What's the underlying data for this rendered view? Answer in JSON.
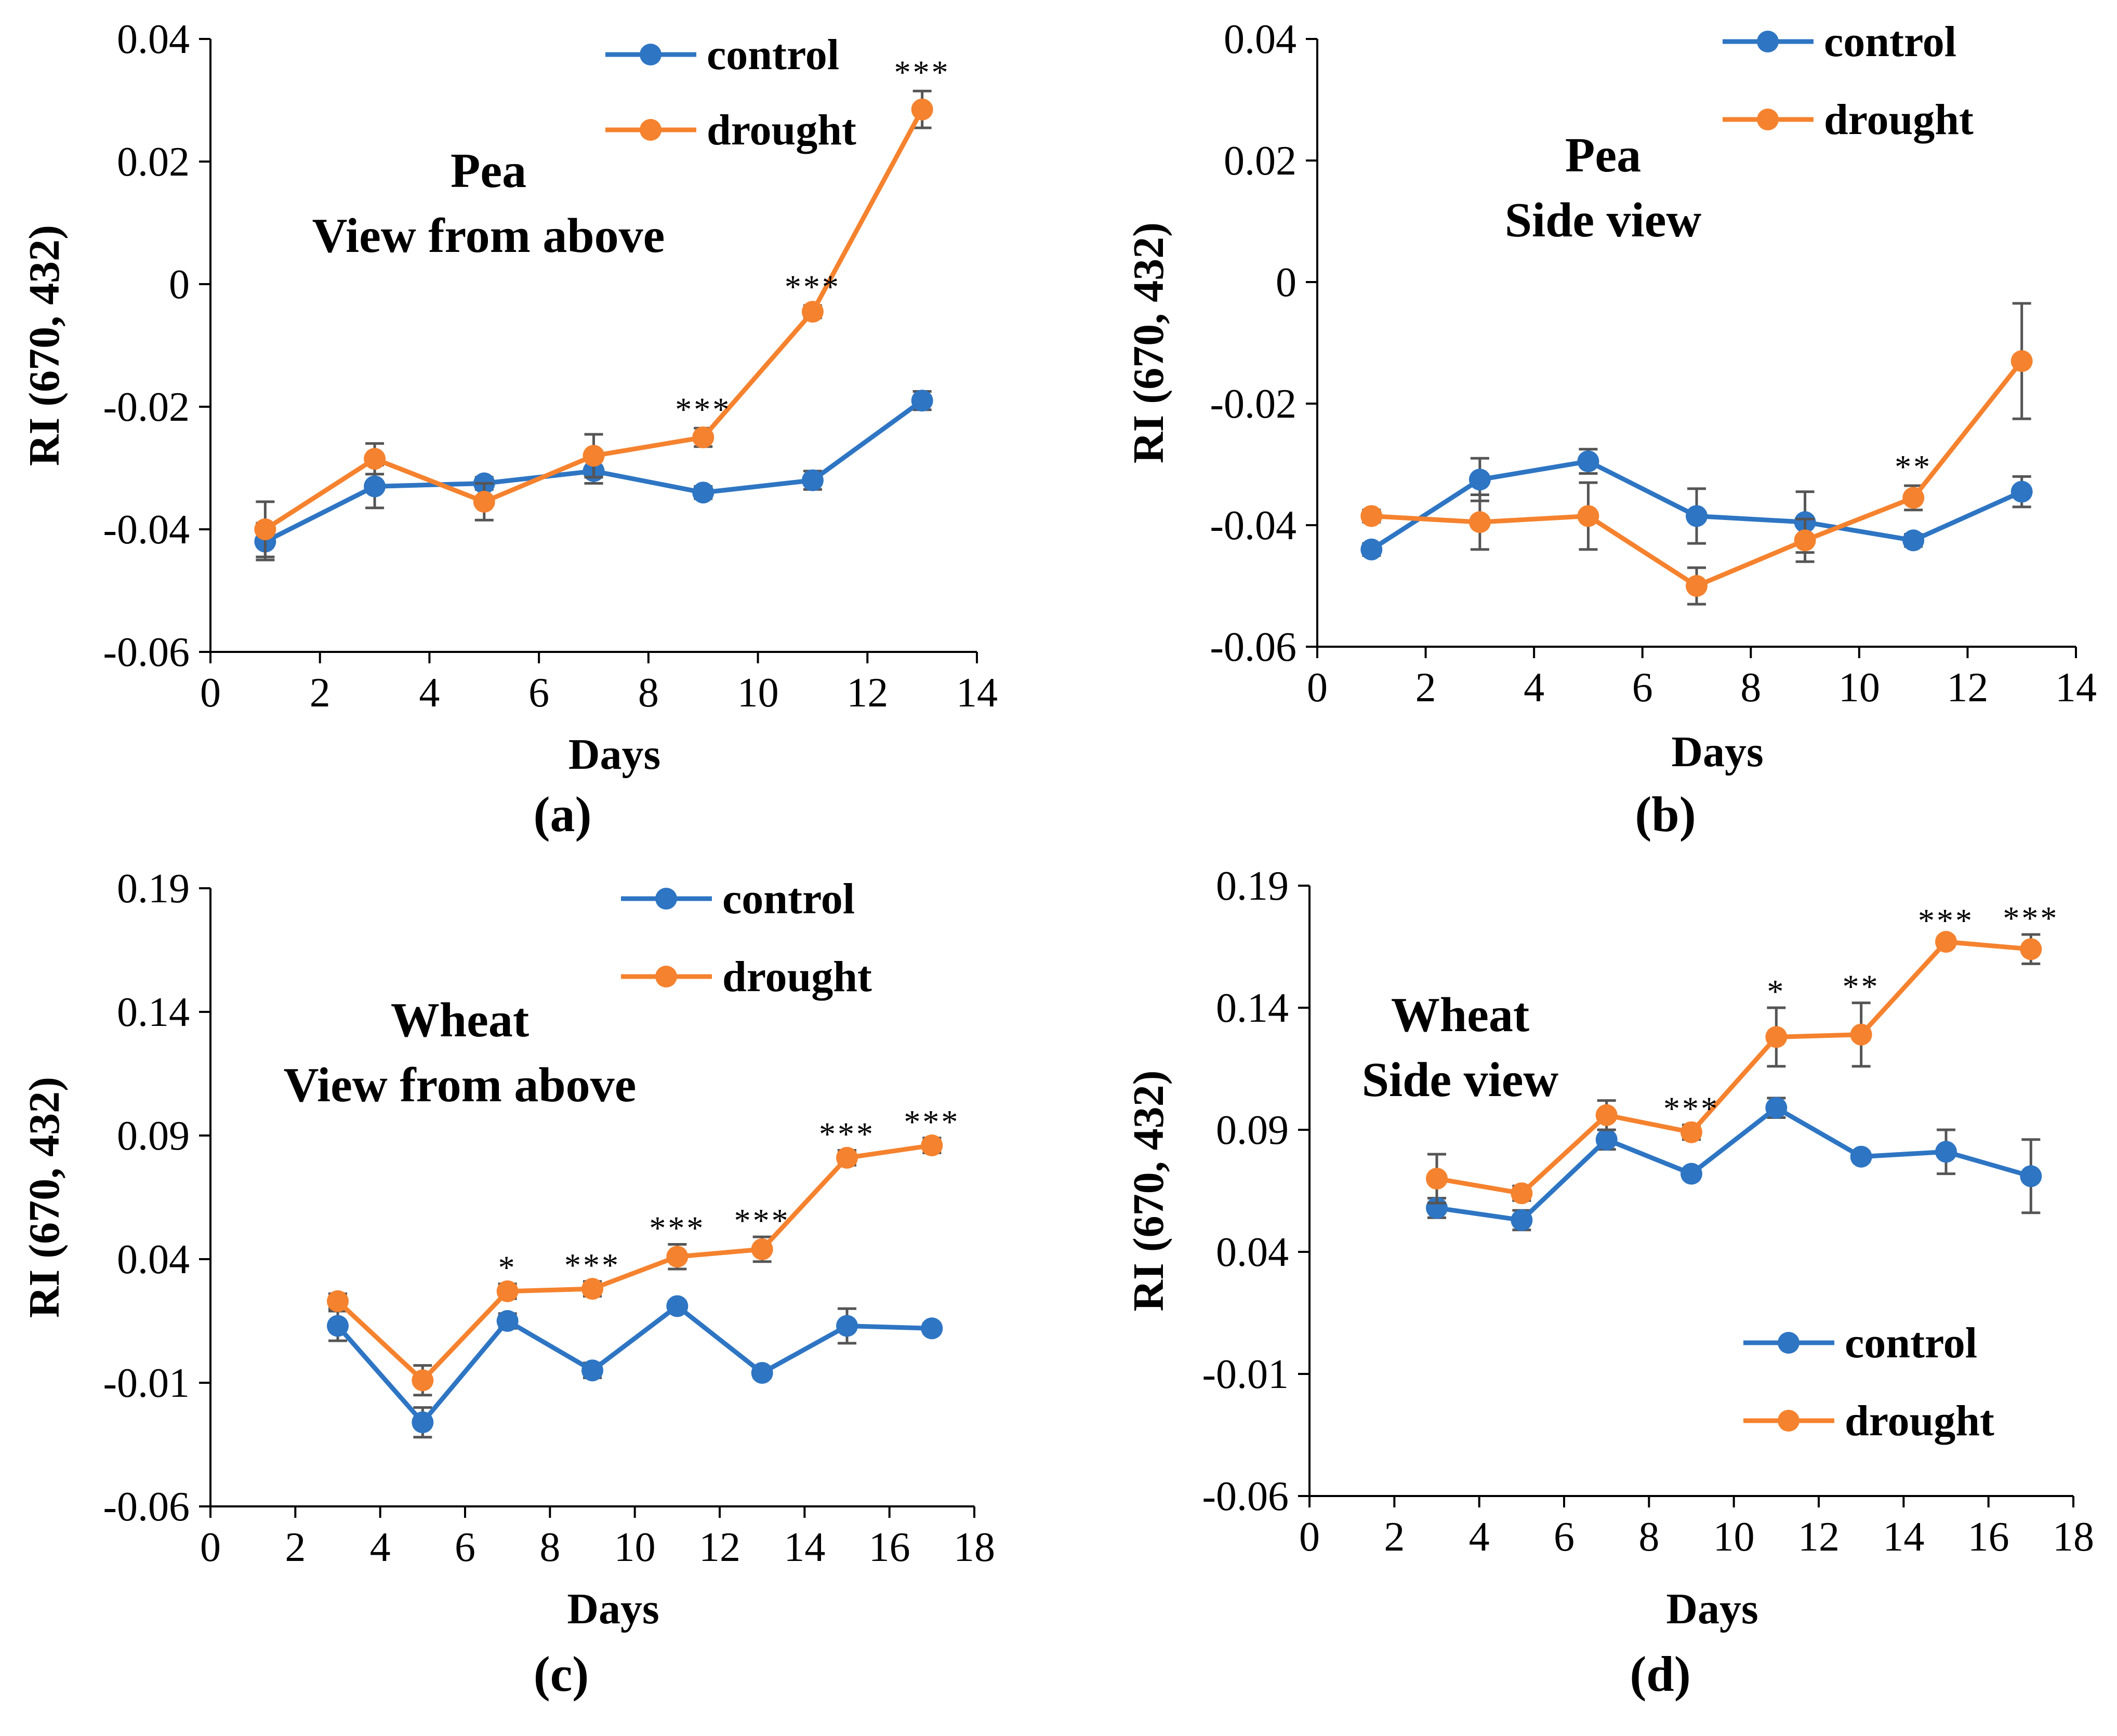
{
  "colors": {
    "control": "#2E75C3",
    "drought": "#F5822E",
    "axis": "#000000",
    "error": "#555555"
  },
  "chart_data": [
    {
      "type": "line",
      "panel": "(a)",
      "title": [
        "Pea",
        "View from above"
      ],
      "xlabel": "Days",
      "ylabel": "RI (670, 432)",
      "xlim": [
        0,
        14
      ],
      "ylim": [
        -0.06,
        0.04
      ],
      "xticks": [
        0,
        2,
        4,
        6,
        8,
        10,
        12,
        14
      ],
      "yticks": [
        -0.06,
        -0.04,
        -0.02,
        0,
        0.02,
        0.04
      ],
      "ytick_labels": [
        "-0.06",
        "-0.04",
        "-0.02",
        "0",
        "0.02",
        "0.04"
      ],
      "legend_position": "top-right",
      "x": [
        1,
        3,
        5,
        7,
        9,
        11,
        13
      ],
      "series": [
        {
          "name": "control",
          "values": [
            -0.042,
            -0.033,
            -0.0325,
            -0.0305,
            -0.034,
            -0.032,
            -0.019
          ],
          "errors": [
            0.003,
            0.0035,
            0.001,
            0.002,
            0.001,
            0.0015,
            0.0015
          ]
        },
        {
          "name": "drought",
          "values": [
            -0.04,
            -0.0285,
            -0.0355,
            -0.028,
            -0.025,
            -0.0045,
            0.0285
          ],
          "errors": [
            0.0045,
            0.0025,
            0.003,
            0.0035,
            0.0015,
            0.001,
            0.003
          ]
        }
      ],
      "significance": [
        {
          "x": 9,
          "label": "***"
        },
        {
          "x": 11,
          "label": "***"
        },
        {
          "x": 13,
          "label": "***"
        }
      ]
    },
    {
      "type": "line",
      "panel": "(b)",
      "title": [
        "Pea",
        "Side view"
      ],
      "xlabel": "Days",
      "ylabel": "RI (670, 432)",
      "xlim": [
        0,
        14
      ],
      "ylim": [
        -0.06,
        0.04
      ],
      "xticks": [
        0,
        2,
        4,
        6,
        8,
        10,
        12,
        14
      ],
      "yticks": [
        -0.06,
        -0.04,
        -0.02,
        0,
        0.02,
        0.04
      ],
      "ytick_labels": [
        "-0.06",
        "-0.04",
        "-0.02",
        "0",
        "0.02",
        "0.04"
      ],
      "legend_position": "top-right",
      "x": [
        1,
        3,
        5,
        7,
        9,
        11,
        13
      ],
      "series": [
        {
          "name": "control",
          "values": [
            -0.044,
            -0.0325,
            -0.0295,
            -0.0385,
            -0.0395,
            -0.0425,
            -0.0345
          ],
          "errors": [
            0.001,
            0.0035,
            0.002,
            0.0045,
            0.005,
            0.001,
            0.0025
          ]
        },
        {
          "name": "drought",
          "values": [
            -0.0385,
            -0.0395,
            -0.0385,
            -0.05,
            -0.0425,
            -0.0355,
            -0.013
          ],
          "errors": [
            0.001,
            0.0045,
            0.0055,
            0.003,
            0.0035,
            0.002,
            0.0095
          ]
        }
      ],
      "significance": [
        {
          "x": 11,
          "label": "**"
        }
      ]
    },
    {
      "type": "line",
      "panel": "(c)",
      "title": [
        "Wheat",
        "View from above"
      ],
      "xlabel": "Days",
      "ylabel": "RI (670, 432)",
      "xlim": [
        0,
        18
      ],
      "ylim": [
        -0.06,
        0.19
      ],
      "xticks": [
        0,
        2,
        4,
        6,
        8,
        10,
        12,
        14,
        16,
        18
      ],
      "yticks": [
        -0.06,
        -0.01,
        0.04,
        0.09,
        0.14,
        0.19
      ],
      "ytick_labels": [
        "-0.06",
        "-0.01",
        "0.04",
        "0.09",
        "0.14",
        "0.19"
      ],
      "legend_position": "top-right",
      "x": [
        3,
        5,
        7,
        9,
        11,
        13,
        15,
        17
      ],
      "series": [
        {
          "name": "control",
          "values": [
            0.013,
            -0.026,
            0.015,
            -0.005,
            0.021,
            -0.006,
            0.013,
            0.012
          ],
          "errors": [
            0.006,
            0.006,
            0.003,
            0.003,
            0.002,
            0.002,
            0.007,
            0.002
          ]
        },
        {
          "name": "drought",
          "values": [
            0.023,
            -0.009,
            0.027,
            0.028,
            0.041,
            0.044,
            0.081,
            0.086
          ],
          "errors": [
            0.003,
            0.006,
            0.003,
            0.003,
            0.005,
            0.005,
            0.003,
            0.003
          ]
        }
      ],
      "significance": [
        {
          "x": 7,
          "label": "*"
        },
        {
          "x": 9,
          "label": "***"
        },
        {
          "x": 11,
          "label": "***"
        },
        {
          "x": 13,
          "label": "***"
        },
        {
          "x": 15,
          "label": "***"
        },
        {
          "x": 17,
          "label": "***"
        }
      ]
    },
    {
      "type": "line",
      "panel": "(d)",
      "title": [
        "Wheat",
        "Side view"
      ],
      "xlabel": "Days",
      "ylabel": "RI (670, 432)",
      "xlim": [
        0,
        18
      ],
      "ylim": [
        -0.06,
        0.19
      ],
      "xticks": [
        0,
        2,
        4,
        6,
        8,
        10,
        12,
        14,
        16,
        18
      ],
      "yticks": [
        -0.06,
        -0.01,
        0.04,
        0.09,
        0.14,
        0.19
      ],
      "ytick_labels": [
        "-0.06",
        "-0.01",
        "0.04",
        "0.09",
        "0.14",
        "0.19"
      ],
      "legend_position": "bottom-right",
      "x": [
        3,
        5,
        7,
        9,
        11,
        13,
        15,
        17
      ],
      "series": [
        {
          "name": "control",
          "values": [
            0.058,
            0.053,
            0.086,
            0.072,
            0.099,
            0.079,
            0.081,
            0.071
          ],
          "errors": [
            0.004,
            0.004,
            0.004,
            0.002,
            0.004,
            0.002,
            0.009,
            0.015
          ]
        },
        {
          "name": "drought",
          "values": [
            0.07,
            0.064,
            0.096,
            0.089,
            0.128,
            0.129,
            0.167,
            0.164
          ],
          "errors": [
            0.01,
            0.003,
            0.006,
            0.003,
            0.012,
            0.013,
            0.002,
            0.006
          ]
        }
      ],
      "significance": [
        {
          "x": 9,
          "label": "***"
        },
        {
          "x": 11,
          "label": "*"
        },
        {
          "x": 13,
          "label": "**"
        },
        {
          "x": 15,
          "label": "***"
        },
        {
          "x": 17,
          "label": "***"
        }
      ]
    }
  ]
}
